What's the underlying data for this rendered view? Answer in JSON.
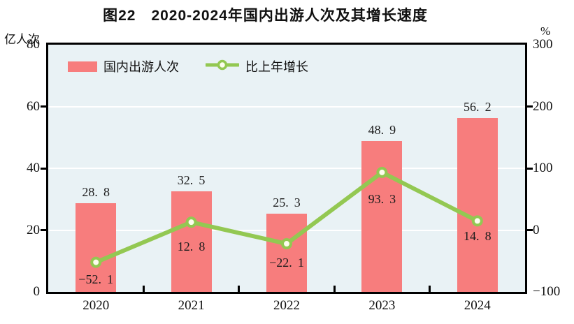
{
  "title": "图22　2020-2024年国内出游人次及其增长速度",
  "chart_data": {
    "type": "bar-line-combo",
    "title": "图22　2020-2024年国内出游人次及其增长速度",
    "categories": [
      "2020",
      "2021",
      "2022",
      "2023",
      "2024"
    ],
    "series": [
      {
        "name": "国内出游人次",
        "type": "bar",
        "axis": "left",
        "unit": "亿人次",
        "values": [
          28.8,
          32.5,
          25.3,
          48.9,
          56.2
        ],
        "color": "#f77d7d"
      },
      {
        "name": "比上年增长",
        "type": "line",
        "axis": "right",
        "unit": "%",
        "values": [
          -52.1,
          12.8,
          -22.1,
          93.3,
          14.8
        ],
        "color": "#93c852",
        "marker_fill": "#fdfdee"
      }
    ],
    "left_axis": {
      "unit": "亿人次",
      "min": 0,
      "max": 80,
      "ticks": [
        0,
        20,
        40,
        60,
        80
      ]
    },
    "right_axis": {
      "unit": "%",
      "min": -100,
      "max": 300,
      "ticks": [
        -100,
        0,
        100,
        200,
        300
      ]
    },
    "grid": true,
    "gridline_color": "#ffffff",
    "plot_bg": "#e9f2f5",
    "axis_color": "#000000",
    "legend_position": "top-left-inside"
  }
}
